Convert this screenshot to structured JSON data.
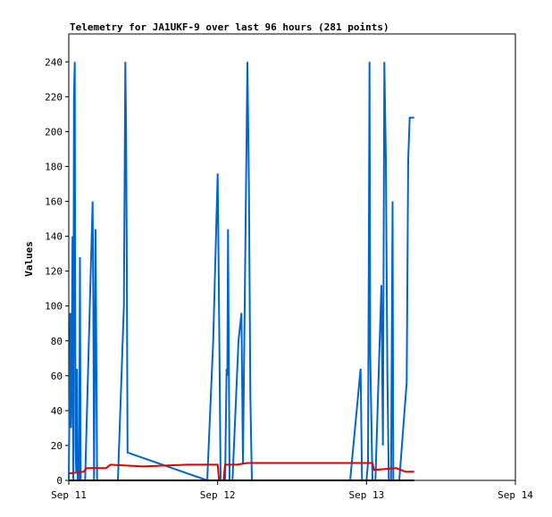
{
  "chart_data": {
    "type": "line",
    "title": "Telemetry for JA1UKF-9 over last 96 hours (281 points)",
    "xlabel": "",
    "ylabel": "Values",
    "xlim": [
      "Sep 11",
      "Sep 14"
    ],
    "ylim": [
      0,
      256
    ],
    "x_ticks": [
      "Sep 11",
      "Sep 12",
      "Sep 13",
      "Sep 14"
    ],
    "y_ticks": [
      0,
      20,
      40,
      60,
      80,
      100,
      120,
      140,
      160,
      180,
      200,
      220,
      240
    ],
    "grid": false,
    "legend": "none",
    "series": [
      {
        "color": "#0066cc",
        "points": [
          [
            0.0,
            0
          ],
          [
            0.01,
            96
          ],
          [
            0.015,
            30
          ],
          [
            0.02,
            60
          ],
          [
            0.025,
            140
          ],
          [
            0.03,
            0
          ],
          [
            0.035,
            220
          ],
          [
            0.04,
            240
          ],
          [
            0.045,
            20
          ],
          [
            0.05,
            5
          ],
          [
            0.055,
            64
          ],
          [
            0.06,
            0
          ],
          [
            0.07,
            0
          ],
          [
            0.075,
            128
          ],
          [
            0.08,
            0
          ],
          [
            0.11,
            0
          ],
          [
            0.16,
            160
          ],
          [
            0.165,
            100
          ],
          [
            0.17,
            0
          ],
          [
            0.18,
            144
          ],
          [
            0.19,
            0
          ],
          [
            0.33,
            0
          ],
          [
            0.37,
            100
          ],
          [
            0.38,
            240
          ],
          [
            0.385,
            200
          ],
          [
            0.39,
            120
          ],
          [
            0.395,
            16
          ],
          [
            0.93,
            0
          ],
          [
            0.97,
            80
          ],
          [
            1.0,
            176
          ],
          [
            1.01,
            95
          ],
          [
            1.02,
            0
          ],
          [
            1.05,
            0
          ],
          [
            1.06,
            64
          ],
          [
            1.065,
            60
          ],
          [
            1.07,
            144
          ],
          [
            1.08,
            0
          ],
          [
            1.1,
            0
          ],
          [
            1.14,
            80
          ],
          [
            1.16,
            96
          ],
          [
            1.17,
            10
          ],
          [
            1.2,
            240
          ],
          [
            1.21,
            168
          ],
          [
            1.22,
            48
          ],
          [
            1.23,
            0
          ],
          [
            1.89,
            0
          ],
          [
            1.96,
            64
          ],
          [
            1.97,
            0
          ],
          [
            2.0,
            0
          ],
          [
            2.01,
            10
          ],
          [
            2.02,
            240
          ],
          [
            2.025,
            72
          ],
          [
            2.03,
            48
          ],
          [
            2.04,
            0
          ],
          [
            2.06,
            0
          ],
          [
            2.1,
            112
          ],
          [
            2.11,
            20
          ],
          [
            2.12,
            240
          ],
          [
            2.13,
            184
          ],
          [
            2.14,
            60
          ],
          [
            2.15,
            0
          ],
          [
            2.165,
            0
          ],
          [
            2.175,
            160
          ],
          [
            2.18,
            0
          ],
          [
            2.22,
            0
          ],
          [
            2.27,
            56
          ],
          [
            2.28,
            184
          ],
          [
            2.29,
            208
          ],
          [
            2.32,
            208
          ]
        ]
      },
      {
        "color": "#dd0000",
        "points": [
          [
            0.0,
            4
          ],
          [
            0.1,
            5
          ],
          [
            0.12,
            7
          ],
          [
            0.25,
            7
          ],
          [
            0.28,
            9
          ],
          [
            0.5,
            8
          ],
          [
            0.8,
            9
          ],
          [
            1.0,
            9
          ],
          [
            1.01,
            0
          ],
          [
            1.04,
            0
          ],
          [
            1.05,
            9
          ],
          [
            1.13,
            9
          ],
          [
            1.2,
            10
          ],
          [
            2.04,
            10
          ],
          [
            2.05,
            6
          ],
          [
            2.2,
            7
          ],
          [
            2.26,
            5
          ],
          [
            2.32,
            5
          ]
        ]
      },
      {
        "color": "#000000",
        "points": [
          [
            0.0,
            0
          ],
          [
            2.32,
            0
          ]
        ]
      }
    ]
  }
}
